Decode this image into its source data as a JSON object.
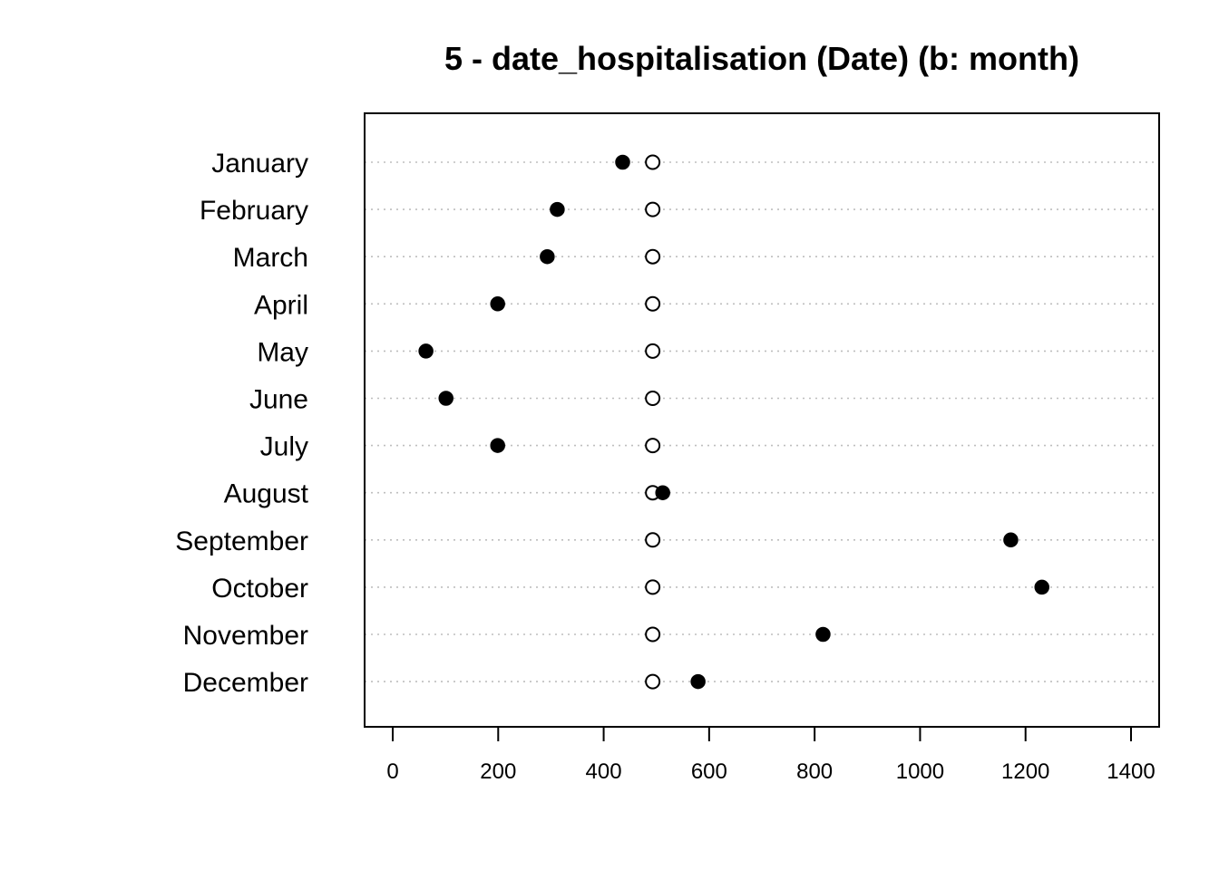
{
  "chart_data": {
    "type": "scatter",
    "title": "5 - date_hospitalisation (Date) (b: month)",
    "xlabel": "",
    "ylabel": "",
    "xlim": [
      0,
      1400
    ],
    "x_ticks": [
      0,
      200,
      400,
      600,
      800,
      1000,
      1200,
      1400
    ],
    "x_tick_labels": [
      "0",
      "200",
      "400",
      "600",
      "800",
      "1000",
      "1200",
      "1400"
    ],
    "grid": true,
    "categories": [
      "January",
      "February",
      "March",
      "April",
      "May",
      "June",
      "July",
      "August",
      "September",
      "October",
      "November",
      "December"
    ],
    "series": [
      {
        "marker": "filled-circle",
        "color": "#000000",
        "values": [
          436,
          312,
          293,
          199,
          63,
          101,
          199,
          512,
          1172,
          1231,
          816,
          579
        ]
      },
      {
        "marker": "open-circle",
        "color": "#000000",
        "values": [
          493,
          493,
          493,
          493,
          493,
          493,
          493,
          493,
          493,
          493,
          493,
          493
        ]
      }
    ]
  }
}
